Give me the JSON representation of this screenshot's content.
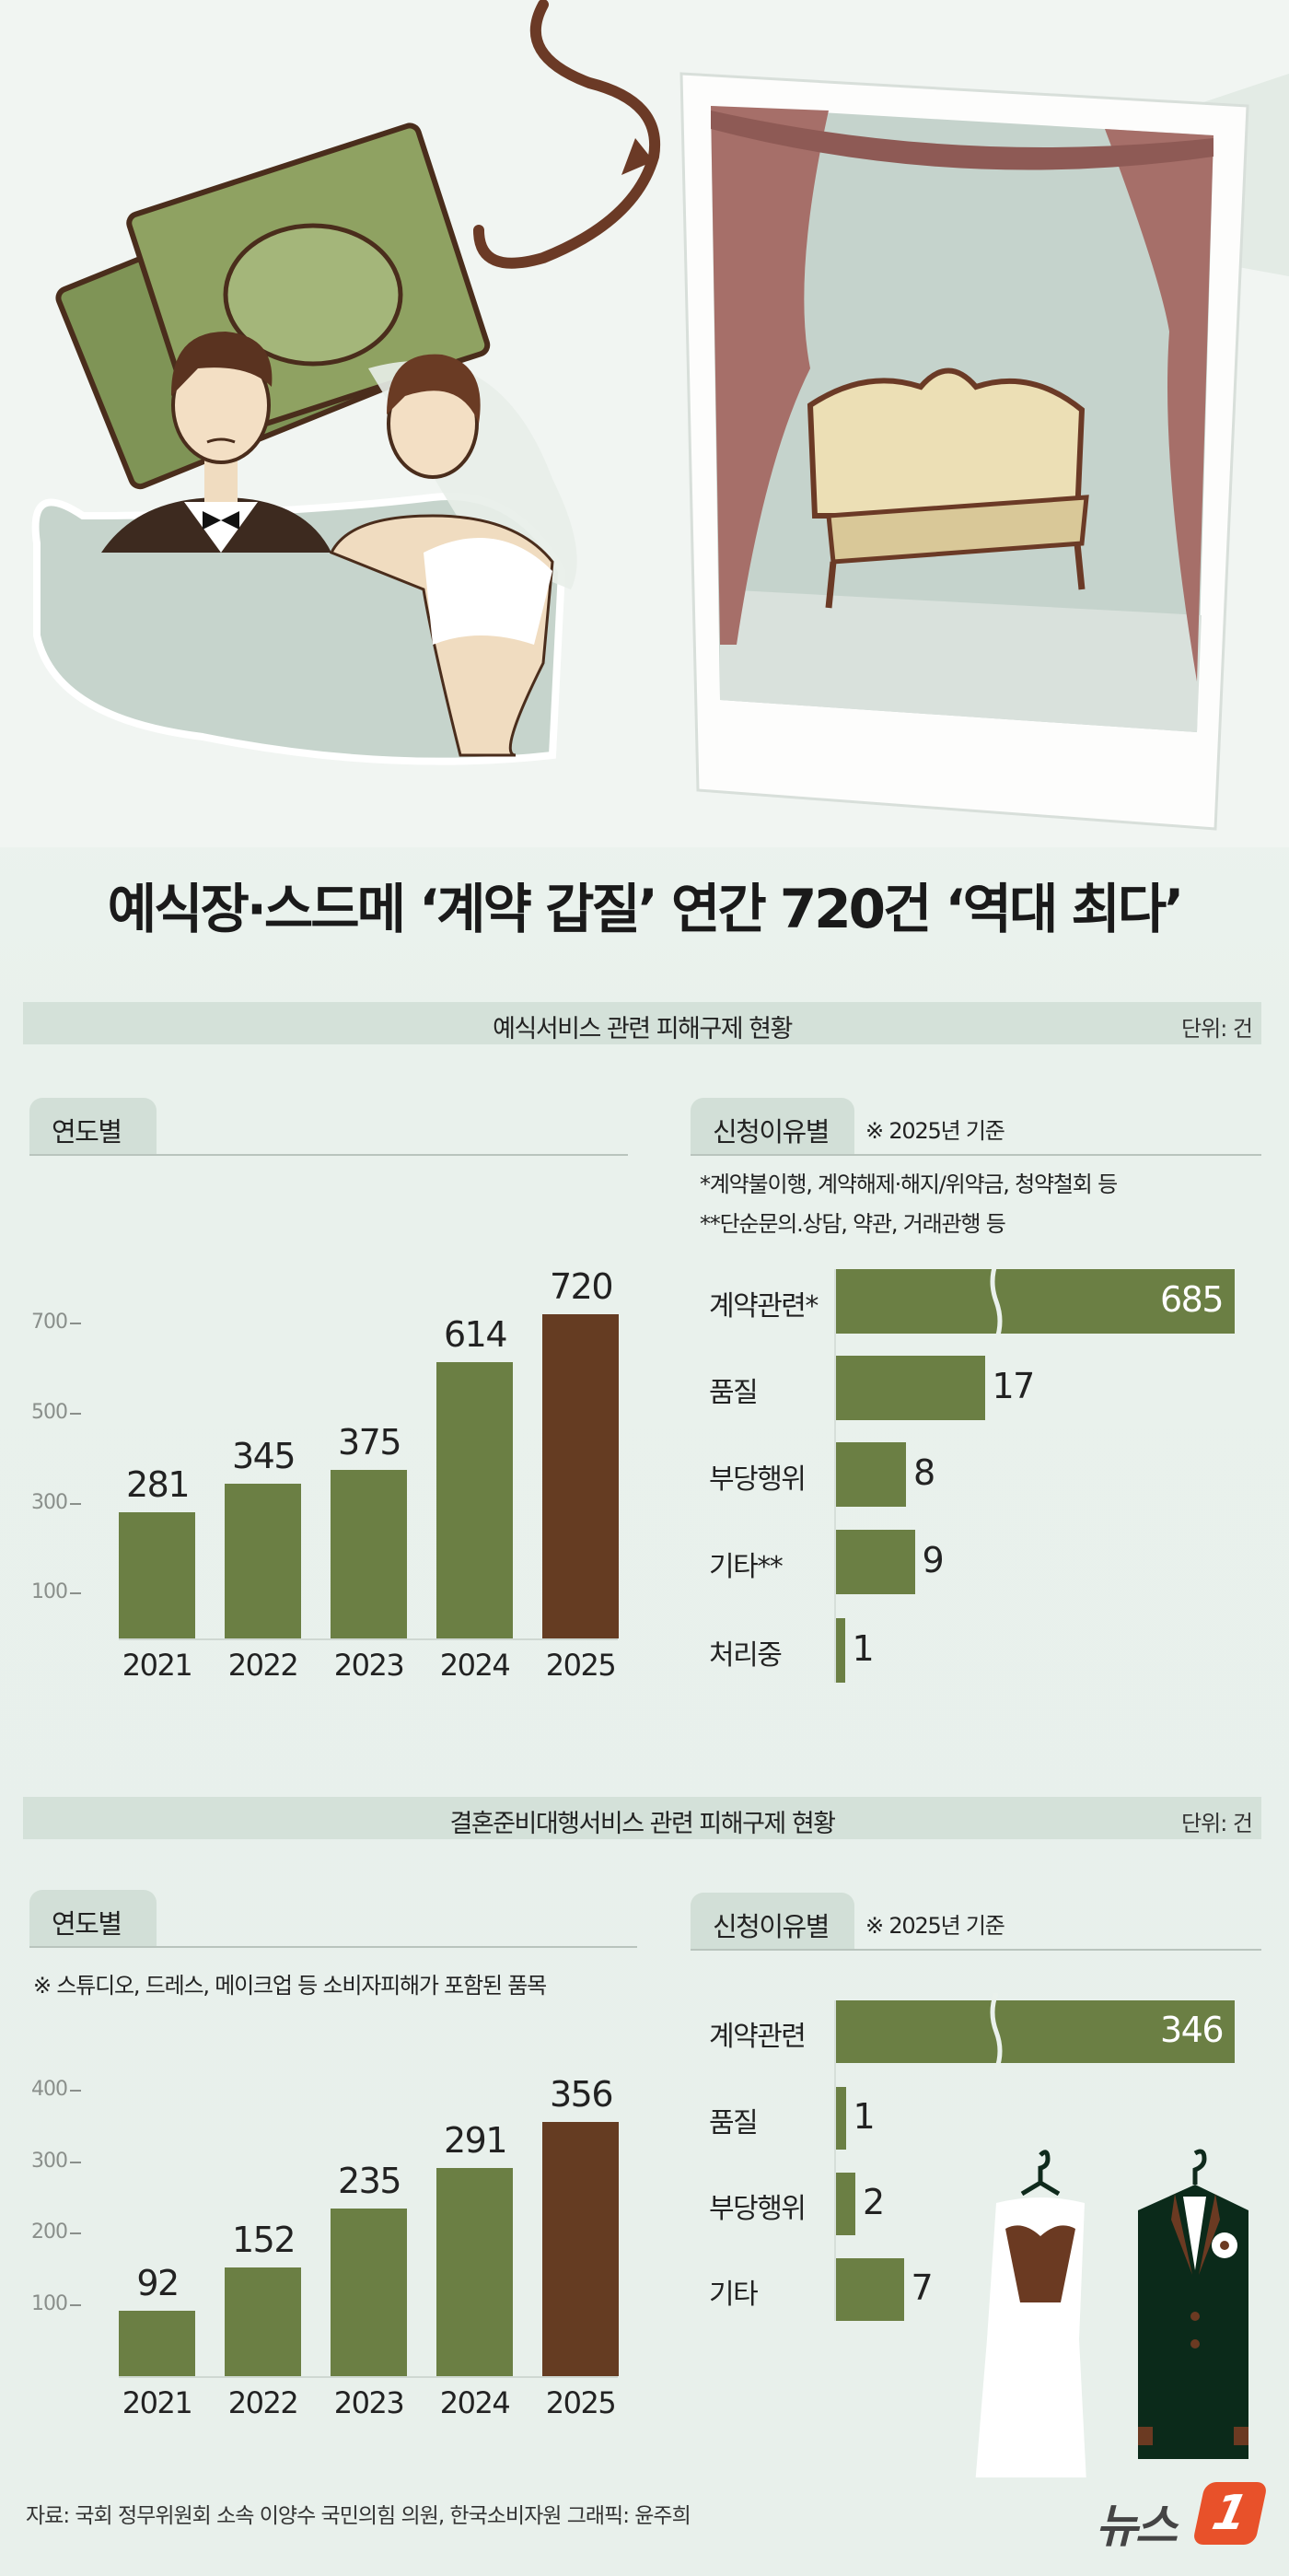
{
  "title": "예식장·스드메 ‘계약 갑질’ 연간 720건 ‘역대 최다’",
  "colors": {
    "green": "#6b7f44",
    "brown": "#653c22",
    "header_bg": "#d4e1d9"
  },
  "section1": {
    "header": "예식서비스 관련 피해구제 현황",
    "unit": "단위: 건",
    "yearly_tab": "연도별",
    "reason_tab": "신청이유별",
    "reason_note": "※ 2025년 기준",
    "footnote1": "*계약불이행, 계약해제·해지/위약금, 청약철회 등",
    "footnote2": "**단순문의.상담, 약관, 거래관행 등"
  },
  "section2": {
    "header": "결혼준비대행서비스 관련 피해구제 현황",
    "unit": "단위: 건",
    "yearly_tab": "연도별",
    "yearly_note": "※ 스튜디오, 드레스, 메이크업 등 소비자피해가 포함된 품목",
    "reason_tab": "신청이유별",
    "reason_note": "※ 2025년 기준"
  },
  "chart_data": [
    {
      "type": "bar",
      "title": "예식서비스 관련 피해구제 현황 - 연도별",
      "categories": [
        "2021",
        "2022",
        "2023",
        "2024",
        "2025"
      ],
      "values": [
        281,
        345,
        375,
        614,
        720
      ],
      "yticks": [
        "100",
        "300",
        "500",
        "700"
      ],
      "ylim": [
        0,
        760
      ],
      "highlight": "2025"
    },
    {
      "type": "bar",
      "orientation": "horizontal",
      "title": "예식서비스 관련 피해구제 현황 - 신청이유별",
      "categories": [
        "계약관련*",
        "품질",
        "부당행위",
        "기타**",
        "처리중"
      ],
      "values": [
        685,
        17,
        8,
        9,
        1
      ],
      "axis_break": "계약관련*"
    },
    {
      "type": "bar",
      "title": "결혼준비대행서비스 관련 피해구제 현황 - 연도별",
      "categories": [
        "2021",
        "2022",
        "2023",
        "2024",
        "2025"
      ],
      "values": [
        92,
        152,
        235,
        291,
        356
      ],
      "yticks": [
        "100",
        "200",
        "300",
        "400"
      ],
      "ylim": [
        0,
        420
      ],
      "highlight": "2025"
    },
    {
      "type": "bar",
      "orientation": "horizontal",
      "title": "결혼준비대행서비스 관련 피해구제 현황 - 신청이유별",
      "categories": [
        "계약관련",
        "품질",
        "부당행위",
        "기타"
      ],
      "values": [
        346,
        1,
        2,
        7
      ],
      "axis_break": "계약관련"
    }
  ],
  "footer": {
    "source": "자료: 국회 정무위원회 소속 이양수 국민의힘 의원, 한국소비자원   그래픽: 윤주희",
    "logo": "뉴스1"
  }
}
